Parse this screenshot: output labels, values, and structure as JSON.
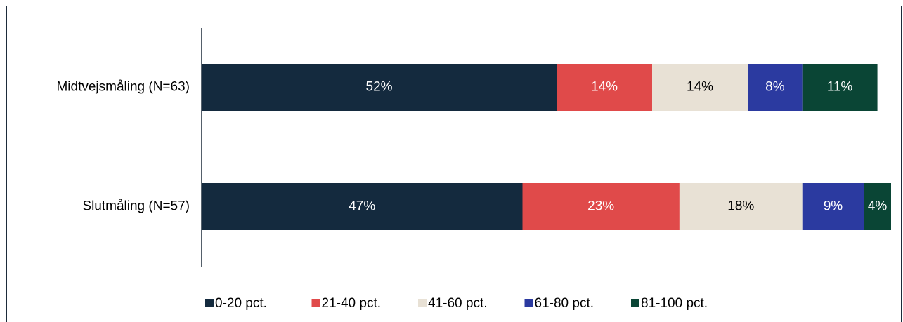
{
  "chart_data": {
    "type": "stacked-bar-horizontal",
    "categories": [
      "Midtvejsmåling (N=63)",
      "Slutmåling (N=57)"
    ],
    "series": [
      {
        "name": "0-20 pct.",
        "color": "#142a3e",
        "values": [
          52,
          47
        ],
        "value_labels": [
          "52%",
          "47%"
        ]
      },
      {
        "name": "21-40 pct.",
        "color": "#e04a4a",
        "values": [
          14,
          23
        ],
        "value_labels": [
          "14%",
          "23%"
        ]
      },
      {
        "name": "41-60 pct.",
        "color": "#e8e1d5",
        "values": [
          14,
          18
        ],
        "value_labels": [
          "14%",
          "18%"
        ]
      },
      {
        "name": "61-80 pct.",
        "color": "#2b3aa0",
        "values": [
          8,
          9
        ],
        "value_labels": [
          "8%",
          "9%"
        ]
      },
      {
        "name": "81-100 pct.",
        "color": "#0a4535",
        "values": [
          11,
          4
        ],
        "value_labels": [
          "11%",
          "4%"
        ]
      }
    ]
  }
}
